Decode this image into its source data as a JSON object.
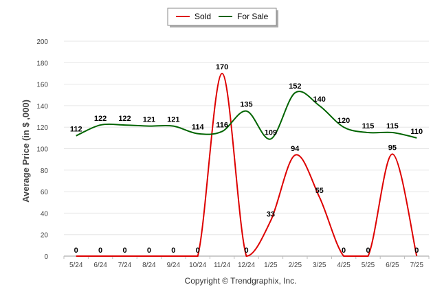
{
  "chart_data": {
    "type": "line",
    "categories": [
      "5/24",
      "6/24",
      "7/24",
      "8/24",
      "9/24",
      "10/24",
      "11/24",
      "12/24",
      "1/25",
      "2/25",
      "3/25",
      "4/25",
      "5/25",
      "6/25",
      "7/25"
    ],
    "series": [
      {
        "name": "Sold",
        "color": "#dd0000",
        "values": [
          0,
          0,
          0,
          0,
          0,
          0,
          170,
          0,
          33,
          94,
          55,
          0,
          0,
          95,
          0
        ]
      },
      {
        "name": "For Sale",
        "color": "#006400",
        "values": [
          112,
          122,
          122,
          121,
          121,
          114,
          116,
          135,
          109,
          152,
          140,
          120,
          115,
          115,
          110
        ]
      }
    ],
    "ylabel": "Average Price (in $ ,000)",
    "ylim": [
      0,
      200
    ],
    "yticks": [
      0,
      20,
      40,
      60,
      80,
      100,
      120,
      140,
      160,
      180,
      200
    ],
    "legend_position": "top-center",
    "grid": true
  },
  "credit": "Copyright © Trendgraphix, Inc."
}
